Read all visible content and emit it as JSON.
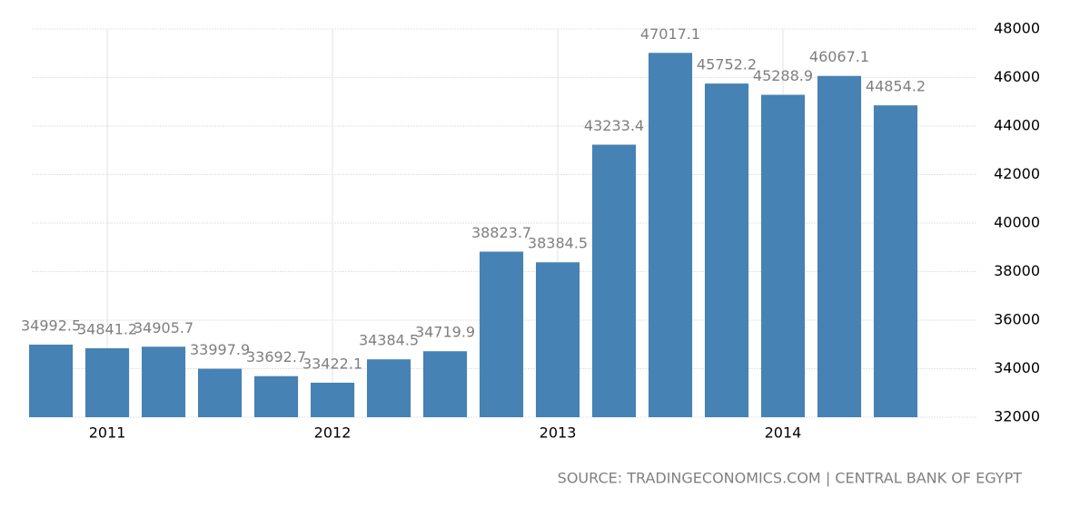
{
  "chart_data": {
    "type": "bar",
    "x": [
      2010.75,
      2011.0,
      2011.25,
      2011.5,
      2011.75,
      2012.0,
      2012.25,
      2012.5,
      2012.75,
      2013.0,
      2013.25,
      2013.5,
      2013.75,
      2014.0,
      2014.25,
      2014.5
    ],
    "values": [
      34992.5,
      34841.2,
      34905.7,
      33997.9,
      33692.7,
      33422.1,
      34384.5,
      34719.9,
      38823.7,
      38384.5,
      43233.4,
      47017.1,
      45752.2,
      45288.9,
      46067.1,
      44854.2
    ],
    "color": "#4682b4",
    "xlim": [
      2010.665,
      2014.859
    ],
    "xticks": [
      2011,
      2012,
      2013,
      2014
    ],
    "ylim": [
      32000,
      48000
    ],
    "yticks": [
      32000,
      34000,
      36000,
      38000,
      40000,
      42000,
      44000,
      46000,
      48000
    ],
    "grid": true,
    "source": "SOURCE: TRADINGECONOMICS.COM | CENTRAL BANK OF EGYPT"
  }
}
